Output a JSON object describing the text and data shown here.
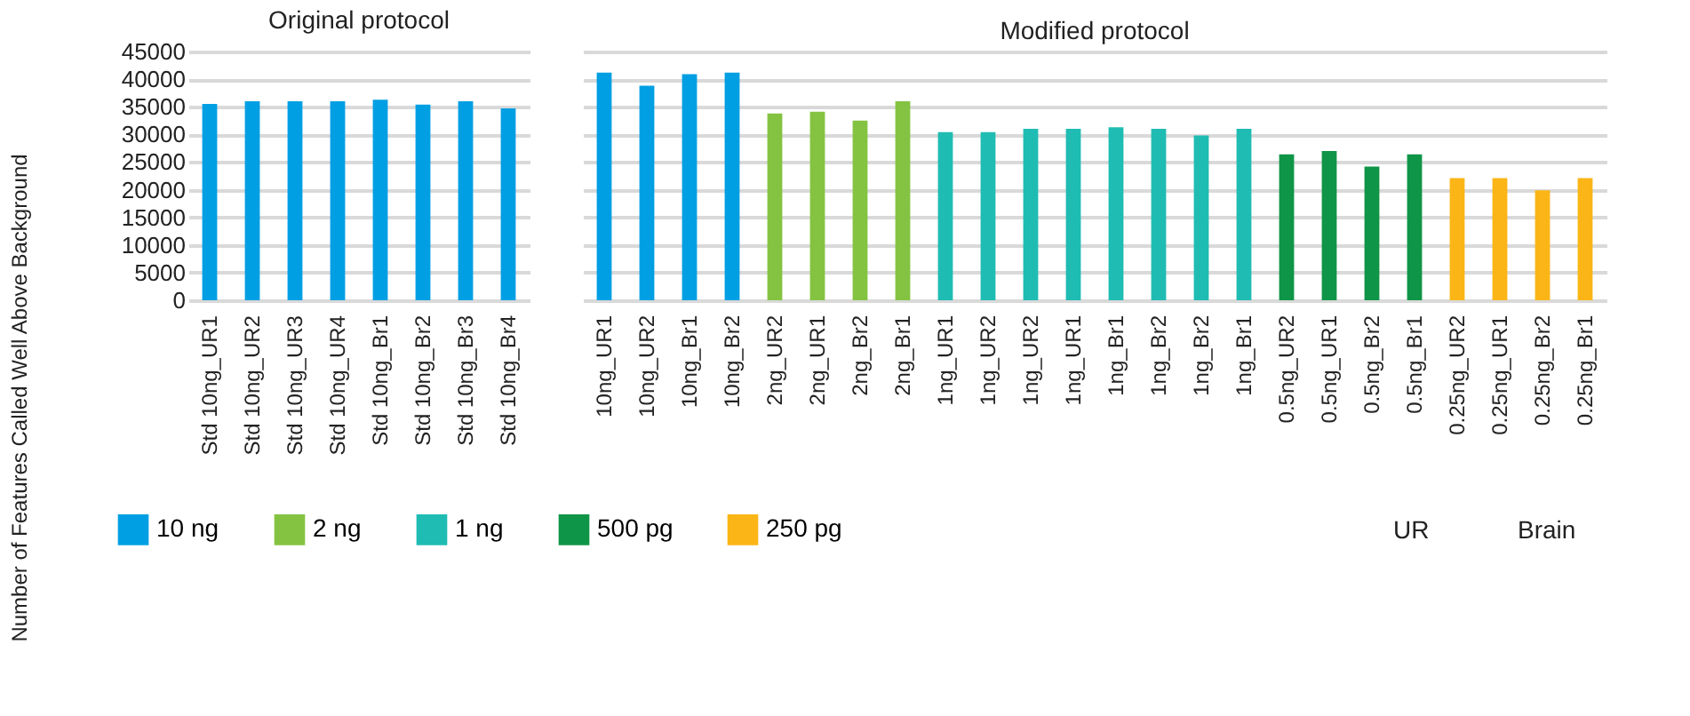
{
  "chart_data": [
    {
      "type": "bar",
      "title": "Original protocol",
      "ylabel": "Number of Features Called Well Above Background",
      "categories": [
        "Std 10ng_UR1",
        "Std 10ng_UR2",
        "Std 10ng_UR3",
        "Std 10ng_UR4",
        "Std 10ng_Br1",
        "Std 10ng_Br2",
        "Std 10ng_Br3",
        "Std 10ng_Br4"
      ],
      "series": [
        {
          "name": "10 ng",
          "color": "#009fe3",
          "values": [
            35500,
            36000,
            36000,
            36000,
            36300,
            35400,
            36000,
            34700
          ]
        }
      ],
      "ylim": [
        0,
        45000
      ],
      "yticks": [
        0,
        5000,
        10000,
        15000,
        20000,
        25000,
        30000,
        35000,
        40000,
        45000
      ],
      "grid": "y",
      "legend": "bottom"
    },
    {
      "type": "bar",
      "title": "Modified protocol",
      "categories": [
        "10ng_UR1",
        "10ng_UR2",
        "10ng_Br1",
        "10ng_Br2",
        "2ng_UR2",
        "2ng_UR1",
        "2ng_Br2",
        "2ng_Br1",
        "1ng_UR1",
        "1ng_UR2",
        "1ng_UR2",
        "1ng_UR1",
        "1ng_Br1",
        "1ng_Br2",
        "1ng_Br2",
        "1ng_Br1",
        "0.5ng_UR2",
        "0.5ng_UR1",
        "0.5ng_Br2",
        "0.5ng_Br1",
        "0.25ng_UR2",
        "0.25ng_UR1",
        "0.25ng_Br2",
        "0.25ng_Br1"
      ],
      "series": [
        {
          "name": "10 ng",
          "color": "#009fe3",
          "values": [
            41200,
            38800,
            40900,
            41200,
            null,
            null,
            null,
            null,
            null,
            null,
            null,
            null,
            null,
            null,
            null,
            null,
            null,
            null,
            null,
            null,
            null,
            null,
            null,
            null
          ]
        },
        {
          "name": "2 ng",
          "color": "#84c341",
          "values": [
            null,
            null,
            null,
            null,
            33800,
            34100,
            32500,
            36000,
            null,
            null,
            null,
            null,
            null,
            null,
            null,
            null,
            null,
            null,
            null,
            null,
            null,
            null,
            null,
            null
          ]
        },
        {
          "name": "1 ng",
          "color": "#1fbcb3",
          "values": [
            null,
            null,
            null,
            null,
            null,
            null,
            null,
            null,
            30400,
            30400,
            31000,
            31000,
            31300,
            31000,
            29800,
            31000,
            null,
            null,
            null,
            null,
            null,
            null,
            null,
            null
          ]
        },
        {
          "name": "500 pg",
          "color": "#0f9547",
          "values": [
            null,
            null,
            null,
            null,
            null,
            null,
            null,
            null,
            null,
            null,
            null,
            null,
            null,
            null,
            null,
            null,
            26400,
            27000,
            24200,
            26400,
            null,
            null,
            null,
            null
          ]
        },
        {
          "name": "250 pg",
          "color": "#fbb516",
          "values": [
            null,
            null,
            null,
            null,
            null,
            null,
            null,
            null,
            null,
            null,
            null,
            null,
            null,
            null,
            null,
            null,
            null,
            null,
            null,
            null,
            22100,
            22100,
            19900,
            22100
          ]
        }
      ],
      "ylim": [
        0,
        45000
      ],
      "yticks": [
        0,
        5000,
        10000,
        15000,
        20000,
        25000,
        30000,
        35000,
        40000,
        45000
      ],
      "grid": "y",
      "legend": "bottom",
      "tick_labels": "x",
      "annotations": [
        "UR",
        "Brain"
      ]
    }
  ]
}
